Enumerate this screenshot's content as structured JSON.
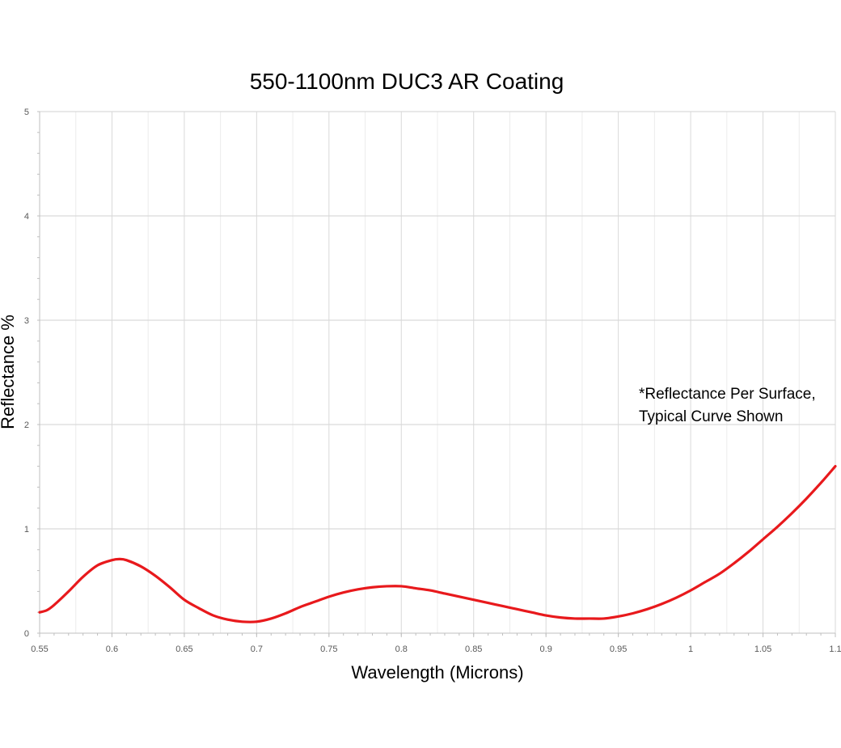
{
  "chart_data": {
    "type": "line",
    "title": "550-1100nm DUC3 AR Coating",
    "xlabel": "Wavelength (Microns)",
    "ylabel": "Reflectance %",
    "xlim": [
      0.55,
      1.1
    ],
    "ylim": [
      0,
      5
    ],
    "x_ticks": [
      0.55,
      0.6,
      0.65,
      0.7,
      0.75,
      0.8,
      0.85,
      0.9,
      0.95,
      1,
      1.05,
      1.1
    ],
    "x_tick_labels": [
      "0.55",
      "0.6",
      "0.65",
      "0.7",
      "0.75",
      "0.8",
      "0.85",
      "0.9",
      "0.95",
      "1",
      "1.05",
      "1.1"
    ],
    "y_ticks": [
      0,
      1,
      2,
      3,
      4,
      5
    ],
    "y_tick_labels": [
      "0",
      "1",
      "2",
      "3",
      "4",
      "5"
    ],
    "grid": true,
    "line_color": "#e8191c",
    "grid_color": "#d9d9d9",
    "annotation": [
      "*Reflectance Per Surface,",
      "Typical Curve Shown"
    ],
    "series": [
      {
        "x": [
          0.55,
          0.555,
          0.56,
          0.57,
          0.58,
          0.59,
          0.6,
          0.605,
          0.61,
          0.62,
          0.63,
          0.64,
          0.65,
          0.66,
          0.67,
          0.68,
          0.69,
          0.7,
          0.71,
          0.72,
          0.73,
          0.74,
          0.75,
          0.76,
          0.77,
          0.78,
          0.79,
          0.8,
          0.81,
          0.82,
          0.83,
          0.84,
          0.85,
          0.86,
          0.87,
          0.88,
          0.89,
          0.9,
          0.91,
          0.92,
          0.93,
          0.94,
          0.95,
          0.96,
          0.97,
          0.98,
          0.99,
          1.0,
          1.01,
          1.02,
          1.03,
          1.04,
          1.05,
          1.06,
          1.07,
          1.08,
          1.09,
          1.1
        ],
        "values": [
          0.2,
          0.22,
          0.27,
          0.4,
          0.54,
          0.65,
          0.7,
          0.71,
          0.7,
          0.64,
          0.55,
          0.44,
          0.32,
          0.24,
          0.17,
          0.13,
          0.11,
          0.11,
          0.14,
          0.19,
          0.25,
          0.3,
          0.35,
          0.39,
          0.42,
          0.44,
          0.45,
          0.45,
          0.43,
          0.41,
          0.38,
          0.35,
          0.32,
          0.29,
          0.26,
          0.23,
          0.2,
          0.17,
          0.15,
          0.14,
          0.14,
          0.14,
          0.16,
          0.19,
          0.23,
          0.28,
          0.34,
          0.41,
          0.49,
          0.57,
          0.67,
          0.78,
          0.9,
          1.02,
          1.15,
          1.29,
          1.44,
          1.6
        ]
      }
    ]
  }
}
